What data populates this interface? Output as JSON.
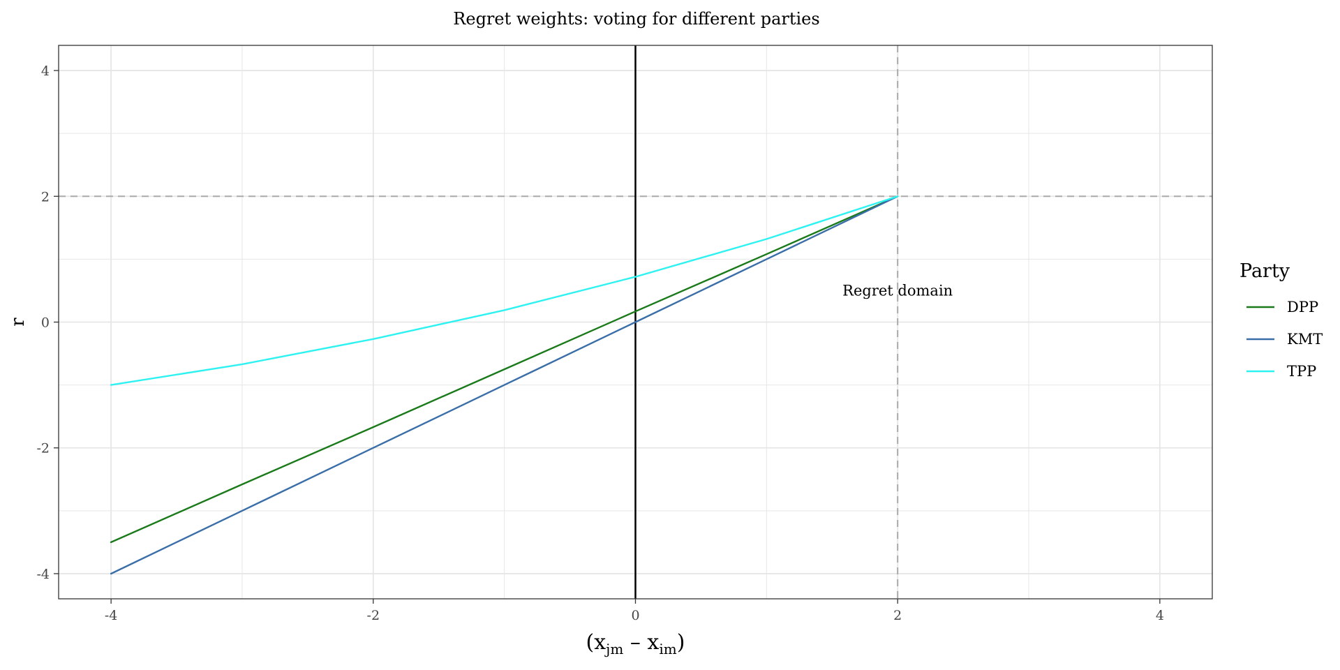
{
  "chart_data": {
    "type": "line",
    "title": "Regret weights: voting for different parties",
    "xlabel": {
      "base": "(x",
      "sub1": "jm",
      "mid": " – x",
      "sub2": "im",
      "end": ")"
    },
    "ylabel": "r",
    "xlim": [
      -4.4,
      4.4
    ],
    "ylim": [
      -4.4,
      4.4
    ],
    "x_ticks": [
      -4,
      -2,
      0,
      2,
      4
    ],
    "x_tick_labels": [
      "-4",
      "-2",
      "0",
      "2",
      "4"
    ],
    "y_ticks": [
      -4,
      -2,
      0,
      2,
      4
    ],
    "y_tick_labels": [
      "-4",
      "-2",
      "0",
      "2",
      "4"
    ],
    "grid": true,
    "legend": {
      "title": "Party",
      "position": "right"
    },
    "reference_lines": {
      "vertical_solid": 0,
      "vertical_dashed": 2,
      "horizontal_dashed": 2
    },
    "annotation": {
      "text": "Regret domain",
      "x": 2,
      "y": 0.5
    },
    "series": [
      {
        "name": "DPP",
        "color": "#1a7a1a",
        "x": [
          -4,
          -3,
          -2,
          -1,
          0,
          1,
          2
        ],
        "y": [
          -3.5,
          -2.58,
          -1.67,
          -0.75,
          0.17,
          1.08,
          2.0
        ]
      },
      {
        "name": "KMT",
        "color": "#3a6ea8",
        "x": [
          -4,
          -3,
          -2,
          -1,
          0,
          1,
          2
        ],
        "y": [
          -4.0,
          -3.0,
          -2.0,
          -1.0,
          0.0,
          1.0,
          2.0
        ]
      },
      {
        "name": "TPP",
        "color": "#2ef2f2",
        "x": [
          -4,
          -3,
          -2,
          -1,
          0,
          1,
          2
        ],
        "y": [
          -1.0,
          -0.67,
          -0.27,
          0.19,
          0.72,
          1.32,
          2.0
        ]
      }
    ]
  }
}
